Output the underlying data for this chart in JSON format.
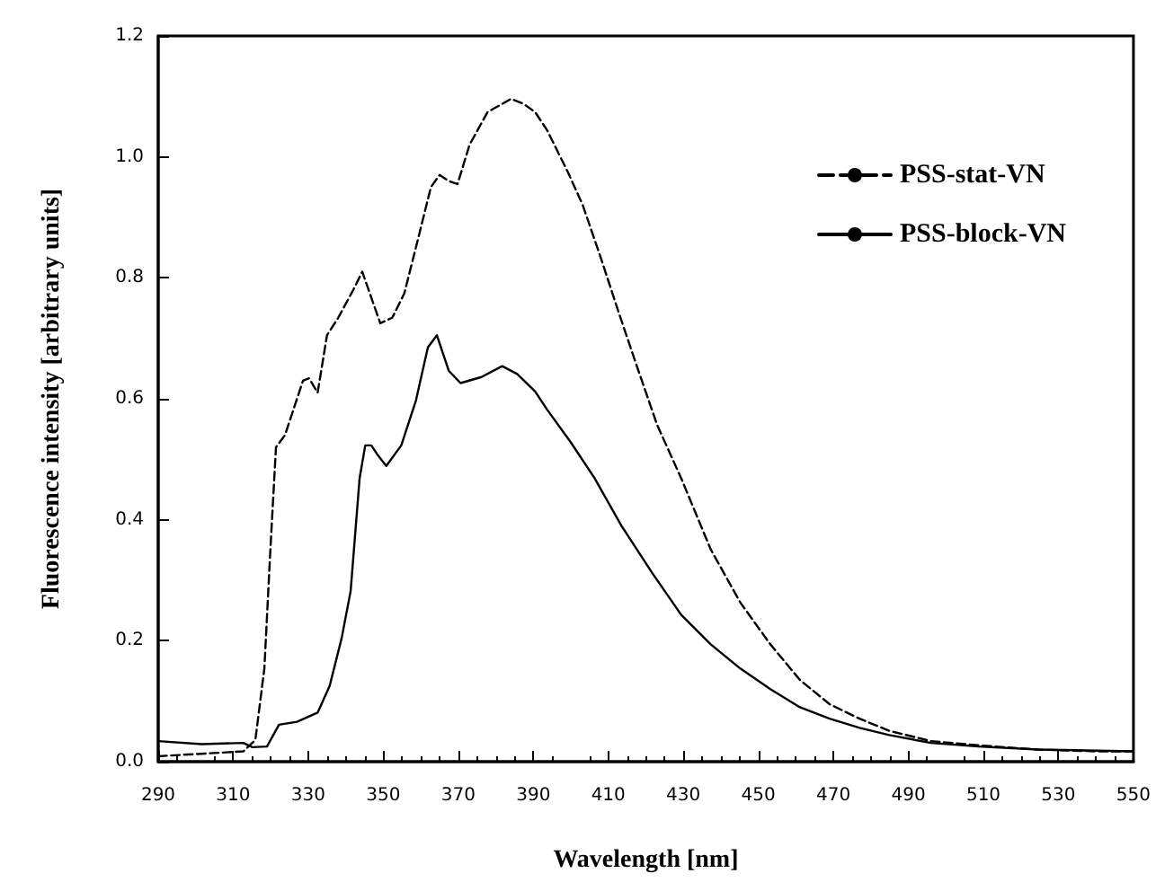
{
  "chart_data": {
    "type": "line",
    "xlabel": "Wavelength [nm]",
    "ylabel": "Fluorescence intensity [arbitrary units]",
    "xlim": [
      290,
      550
    ],
    "xticks": [
      290,
      310,
      330,
      350,
      370,
      390,
      410,
      430,
      450,
      470,
      490,
      510,
      530,
      550
    ],
    "ylim": [
      0,
      1.2
    ],
    "yticks": [
      {
        "value": 0,
        "label": "0.0"
      },
      0.2,
      0.4,
      0.6,
      0.8,
      {
        "value": 1,
        "label": "1.0"
      },
      1.2
    ],
    "grid": false,
    "legend": "top right",
    "marker": "none",
    "series": [
      {
        "name": "PSS-stat-VN",
        "color": "#000000",
        "line_style": "dashed",
        "x": [
          290,
          312.7,
          315.9,
          318.3,
          319.9,
          321.4,
          323.8,
          328.6,
          330.2,
          332.5,
          335,
          338,
          342,
          344.4,
          349.2,
          352.4,
          355.6,
          359.5,
          362.7,
          365,
          367.5,
          369.8,
          373,
          377.8,
          384.1,
          387.3,
          390.5,
          393.7,
          399.2,
          403.2,
          408,
          412.7,
          417.5,
          423,
          429.4,
          437.3,
          445.2,
          453.2,
          461.1,
          469,
          477,
          484.9,
          496,
          508.7,
          524.6,
          540.5,
          550
        ],
        "values": [
          0.009,
          0.017,
          0.036,
          0.154,
          0.35,
          0.52,
          0.54,
          0.63,
          0.634,
          0.61,
          0.705,
          0.734,
          0.78,
          0.81,
          0.725,
          0.734,
          0.774,
          0.87,
          0.95,
          0.97,
          0.96,
          0.955,
          1.02,
          1.074,
          1.096,
          1.088,
          1.074,
          1.044,
          0.975,
          0.92,
          0.833,
          0.744,
          0.656,
          0.557,
          0.469,
          0.351,
          0.263,
          0.194,
          0.135,
          0.095,
          0.071,
          0.051,
          0.034,
          0.027,
          0.02,
          0.017,
          0.017
        ]
      },
      {
        "name": "PSS-block-VN",
        "color": "#000000",
        "line_style": "solid",
        "x": [
          290,
          301.6,
          312.7,
          315.1,
          319,
          322.2,
          327,
          332.5,
          335.7,
          338.9,
          341.3,
          343.7,
          345.2,
          346.8,
          348.4,
          350.8,
          354.8,
          358.7,
          361.9,
          364.3,
          367.5,
          370.6,
          376.2,
          381.7,
          385.7,
          390.5,
          393.7,
          400,
          406.3,
          413.5,
          421.7,
          429.4,
          437.3,
          445.2,
          453.2,
          461.1,
          469,
          477,
          484.9,
          496,
          508.7,
          524.6,
          550
        ],
        "values": [
          0.034,
          0.029,
          0.031,
          0.024,
          0.025,
          0.061,
          0.066,
          0.081,
          0.125,
          0.204,
          0.282,
          0.469,
          0.523,
          0.523,
          0.508,
          0.489,
          0.523,
          0.597,
          0.685,
          0.705,
          0.646,
          0.626,
          0.636,
          0.654,
          0.641,
          0.612,
          0.582,
          0.528,
          0.469,
          0.39,
          0.312,
          0.243,
          0.194,
          0.154,
          0.12,
          0.09,
          0.071,
          0.056,
          0.044,
          0.031,
          0.025,
          0.02,
          0.017
        ]
      }
    ]
  }
}
